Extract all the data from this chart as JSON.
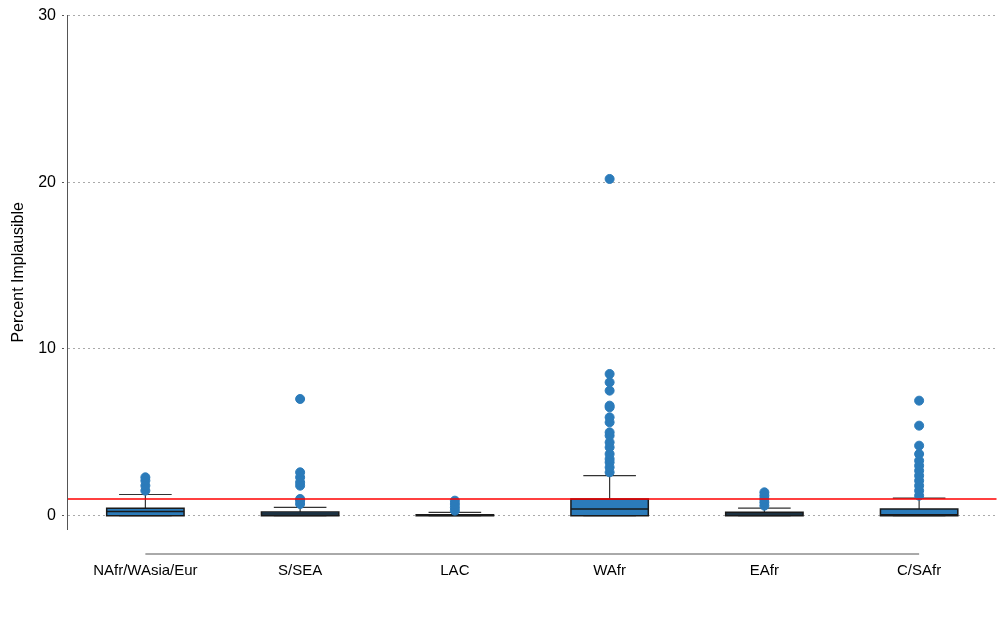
{
  "chart_data": {
    "type": "box",
    "ylabel": "Percent Implausible",
    "categories": [
      "NAfr/WAsia/Eur",
      "S/SEA",
      "LAC",
      "WAfr",
      "EAfr",
      "C/SAfr"
    ],
    "color": "#2b7bba",
    "boxes": [
      {
        "low": 0,
        "q1": 0,
        "median": 0.25,
        "q3": 0.45,
        "high": 1.27,
        "outliers": [
          1.5,
          1.8,
          2.1,
          2.3
        ]
      },
      {
        "low": 0,
        "q1": 0,
        "median": 0.1,
        "q3": 0.22,
        "high": 0.5,
        "outliers": [
          0.7,
          0.9,
          1.0,
          1.8,
          2.0,
          2.3,
          2.6,
          7.0
        ]
      },
      {
        "low": 0,
        "q1": 0,
        "median": 0.02,
        "q3": 0.05,
        "high": 0.2,
        "outliers": [
          0.3,
          0.5,
          0.7,
          0.9
        ]
      },
      {
        "low": 0,
        "q1": 0,
        "median": 0.4,
        "q3": 1.0,
        "high": 2.4,
        "outliers": [
          2.6,
          2.9,
          3.2,
          3.4,
          3.7,
          4.1,
          4.4,
          4.8,
          5.0,
          5.6,
          5.9,
          6.5,
          6.6,
          7.5,
          8.0,
          8.5,
          20.2
        ]
      },
      {
        "low": 0,
        "q1": 0,
        "median": 0.1,
        "q3": 0.2,
        "high": 0.45,
        "outliers": [
          0.6,
          0.8,
          1.0,
          1.2,
          1.4
        ]
      },
      {
        "low": 0,
        "q1": 0,
        "median": 0.05,
        "q3": 0.4,
        "high": 1.05,
        "outliers": [
          1.2,
          1.5,
          1.8,
          2.1,
          2.4,
          2.7,
          3.0,
          3.3,
          3.7,
          4.2,
          5.4,
          6.9
        ]
      }
    ],
    "ylim": [
      -0.8,
      30
    ],
    "yticks": [
      0,
      10,
      20,
      30
    ],
    "grid": "y",
    "legend": false,
    "marker": "circle",
    "ref_lines": [
      {
        "axis": "y",
        "value": 1,
        "color": "#ff0000"
      }
    ]
  }
}
